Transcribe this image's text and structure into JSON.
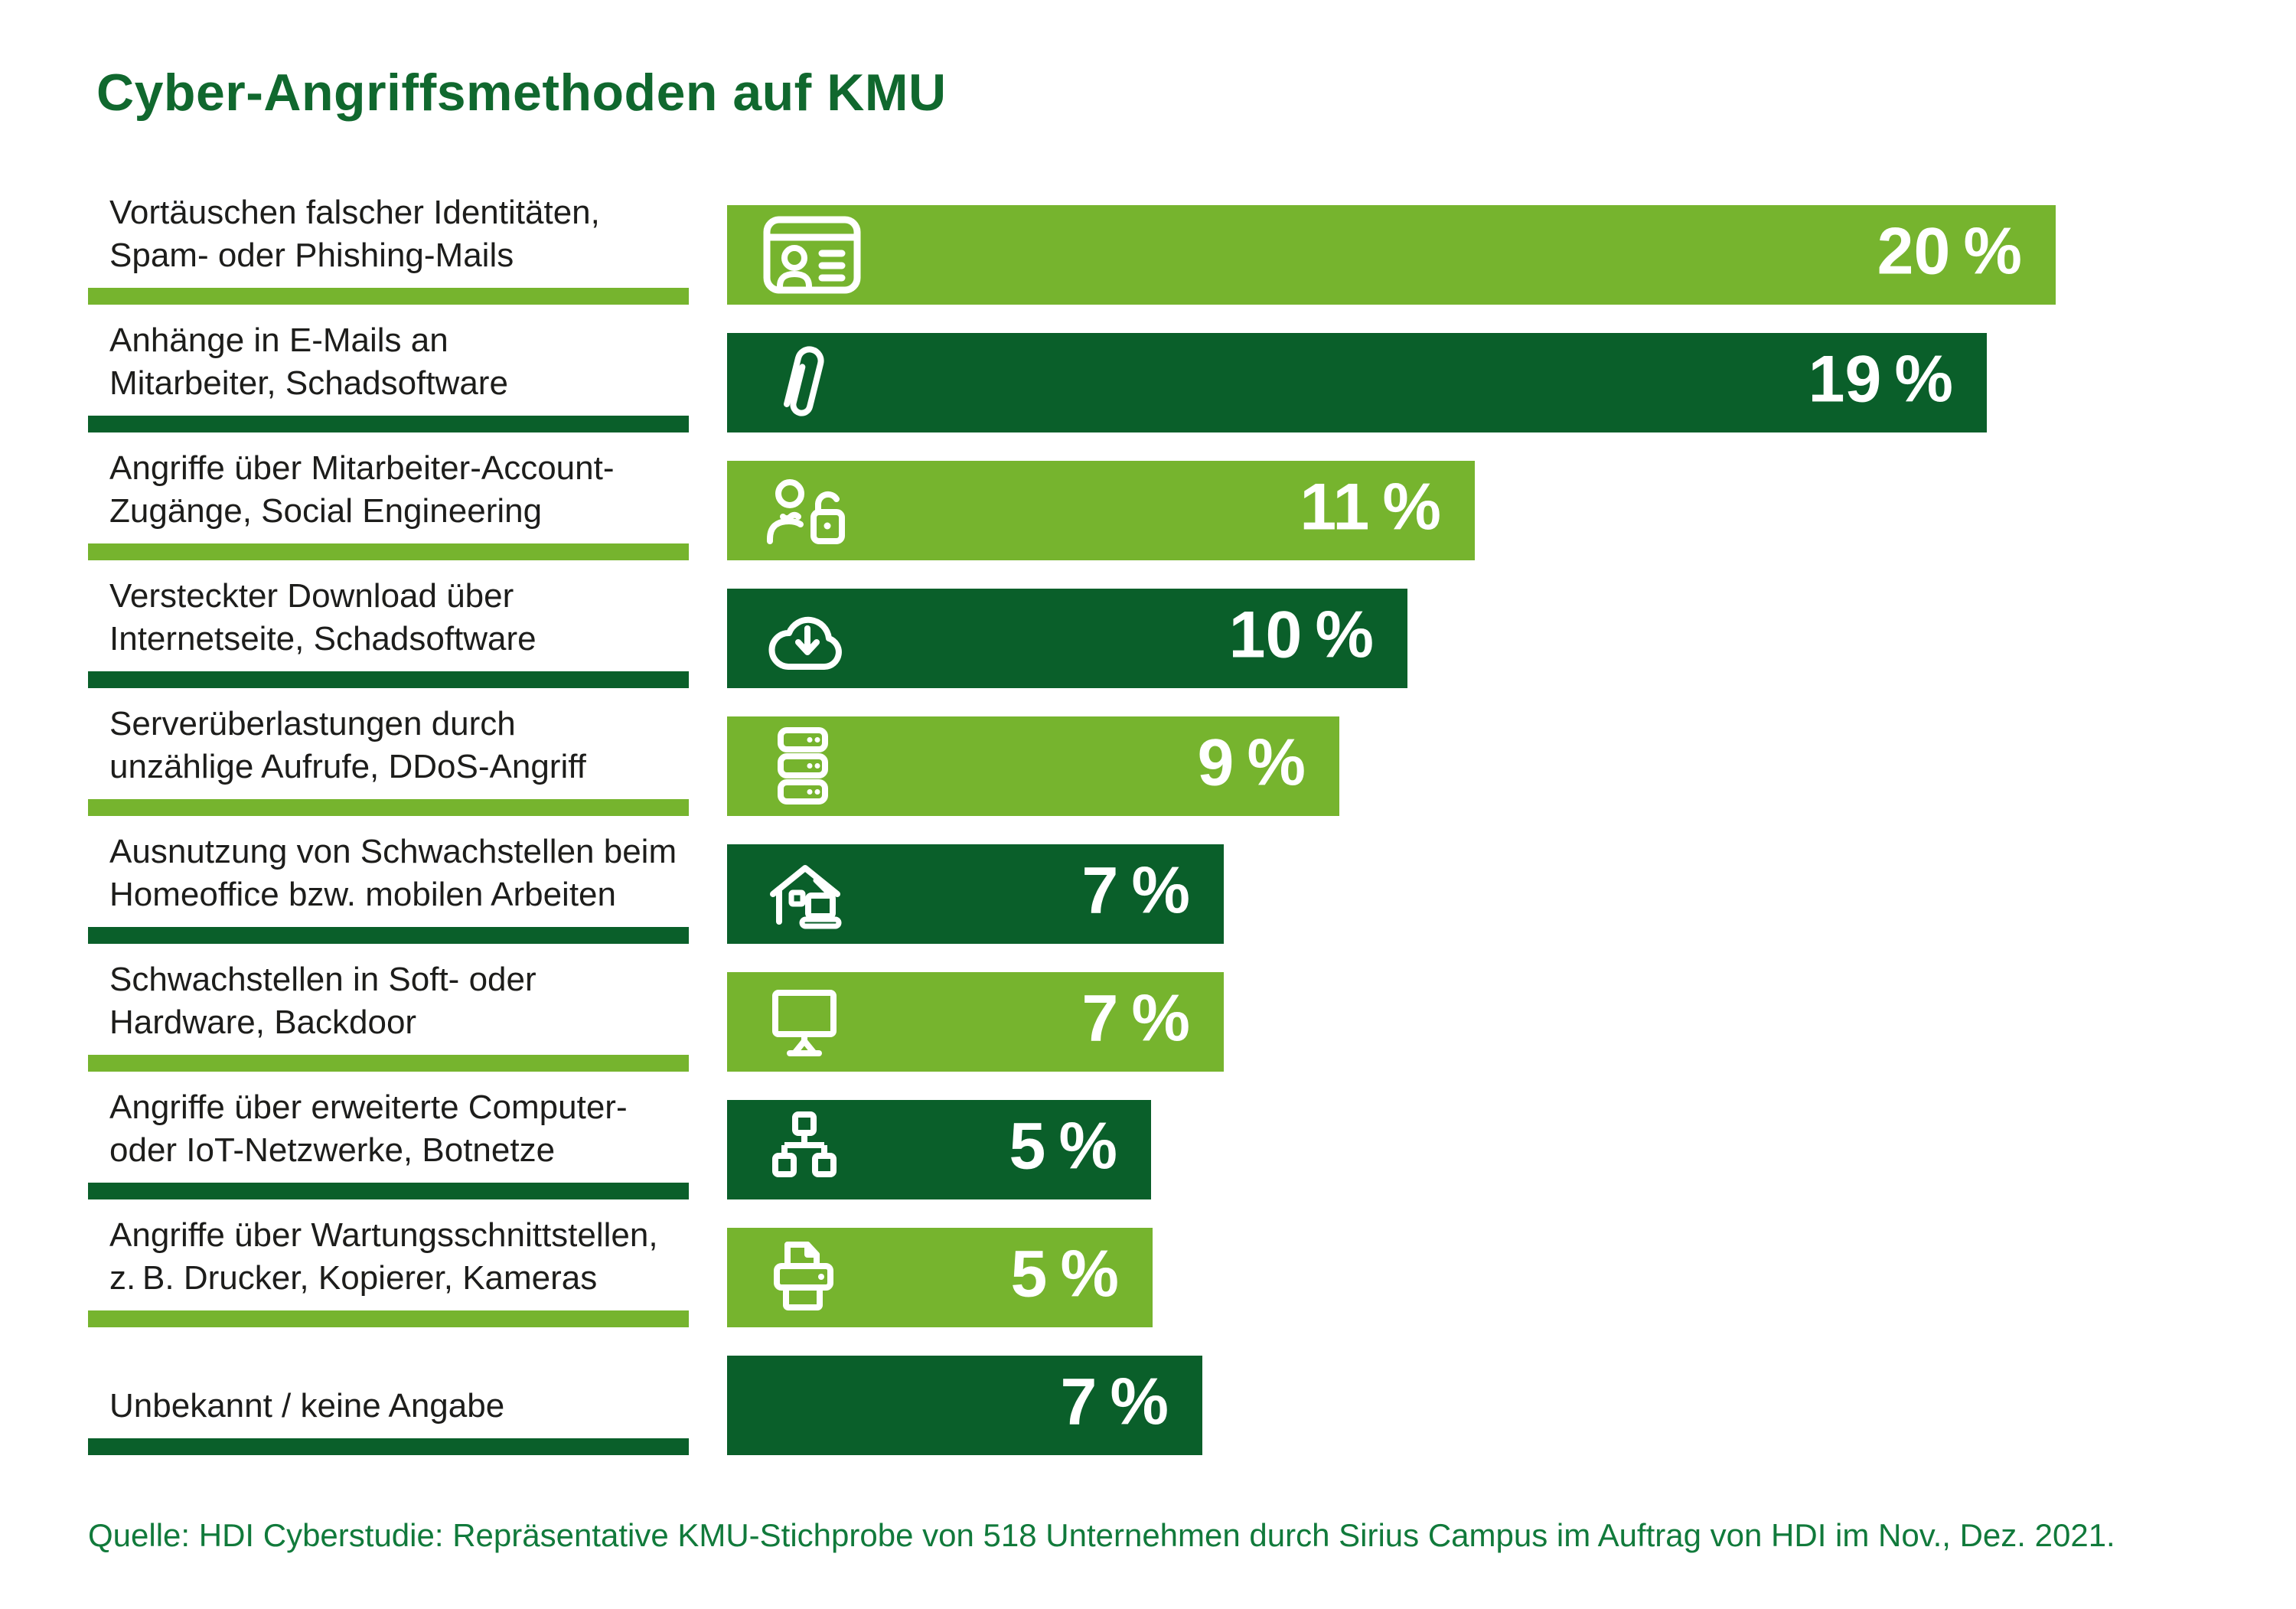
{
  "title": "Cyber-Angriffsmethoden auf KMU",
  "source": "Quelle: HDI Cyberstudie: Repräsentative KMU-Stichprobe von 518 Unternehmen durch Sirius Campus im Auftrag von HDI im Nov., Dez. 2021.",
  "colors": {
    "light_green": "#76b42e",
    "dark_green": "#0a5f2a",
    "title_green": "#10682e",
    "source_green": "#117a3b",
    "label_black": "#1d1d1b",
    "value_text": "#ffffff"
  },
  "chart_data": {
    "type": "bar",
    "orientation": "horizontal",
    "unit": "%",
    "xlim": [
      0,
      20
    ],
    "grid": false,
    "legend": "none",
    "title": "Cyber-Angriffsmethoden auf KMU",
    "categories": [
      "Vortäuschen falscher Identitäten, Spam- oder Phishing-Mails",
      "Anhänge in E-Mails an Mitarbeiter, Schadsoftware",
      "Angriffe über Mitarbeiter-Account-Zugänge, Social Engineering",
      "Versteckter Download über Internetseite, Schadsoftware",
      "Serverüberlastungen durch unzählige Aufrufe, DDoS-Angriff",
      "Ausnutzung von Schwachstellen beim Homeoffice bzw. mobilen Arbeiten",
      "Schwachstellen in Soft- oder Hardware, Backdoor",
      "Angriffe über erweiterte Computer- oder IoT-Netzwerke, Botnetze",
      "Angriffe über Wartungsschnittstellen, z. B. Drucker, Kopierer, Kameras",
      "Unbekannt / keine Angabe"
    ],
    "values": [
      20,
      19,
      11,
      10,
      9,
      7,
      7,
      5,
      5,
      7
    ],
    "bars": [
      {
        "label_line1": "Vortäuschen falscher Identitäten,",
        "label_line2": "Spam- oder Phishing-Mails",
        "value": 20,
        "value_label": "20 %",
        "tone": "light",
        "icon": "id-card",
        "width_pct": 100
      },
      {
        "label_line1": "Anhänge in E-Mails an",
        "label_line2": "Mitarbeiter, Schadsoftware",
        "value": 19,
        "value_label": "19 %",
        "tone": "dark",
        "icon": "paperclip",
        "width_pct": 94.8
      },
      {
        "label_line1": "Angriffe über Mitarbeiter-Account-",
        "label_line2": "Zugänge, Social Engineering",
        "value": 11,
        "value_label": "11 %",
        "tone": "light",
        "icon": "user-lock",
        "width_pct": 56.3
      },
      {
        "label_line1": "Versteckter Download über",
        "label_line2": "Internetseite, Schadsoftware",
        "value": 10,
        "value_label": "10 %",
        "tone": "dark",
        "icon": "cloud-download",
        "width_pct": 51.2
      },
      {
        "label_line1": "Serverüberlastungen durch",
        "label_line2": "unzählige Aufrufe, DDoS-Angriff",
        "value": 9,
        "value_label": "9 %",
        "tone": "light",
        "icon": "server-stack",
        "width_pct": 46.1
      },
      {
        "label_line1": "Ausnutzung von Schwachstellen beim",
        "label_line2": "Homeoffice bzw. mobilen Arbeiten",
        "value": 7,
        "value_label": "7 %",
        "tone": "dark",
        "icon": "home-office",
        "width_pct": 37.4
      },
      {
        "label_line1": "Schwachstellen in Soft- oder",
        "label_line2": "Hardware, Backdoor",
        "value": 7,
        "value_label": "7 %",
        "tone": "light",
        "icon": "monitor",
        "width_pct": 37.4
      },
      {
        "label_line1": "Angriffe über erweiterte Computer-",
        "label_line2": "oder IoT-Netzwerke, Botnetze",
        "value": 5,
        "value_label": "5 %",
        "tone": "dark",
        "icon": "network",
        "width_pct": 31.9
      },
      {
        "label_line1": "Angriffe über Wartungsschnittstellen,",
        "label_line2": "z. B. Drucker, Kopierer, Kameras",
        "value": 5,
        "value_label": "5 %",
        "tone": "light",
        "icon": "printer",
        "width_pct": 32.0
      },
      {
        "label_line1": "Unbekannt / keine Angabe",
        "label_line2": null,
        "value": 7,
        "value_label": "7 %",
        "tone": "dark",
        "icon": null,
        "width_pct": 35.8
      }
    ]
  }
}
